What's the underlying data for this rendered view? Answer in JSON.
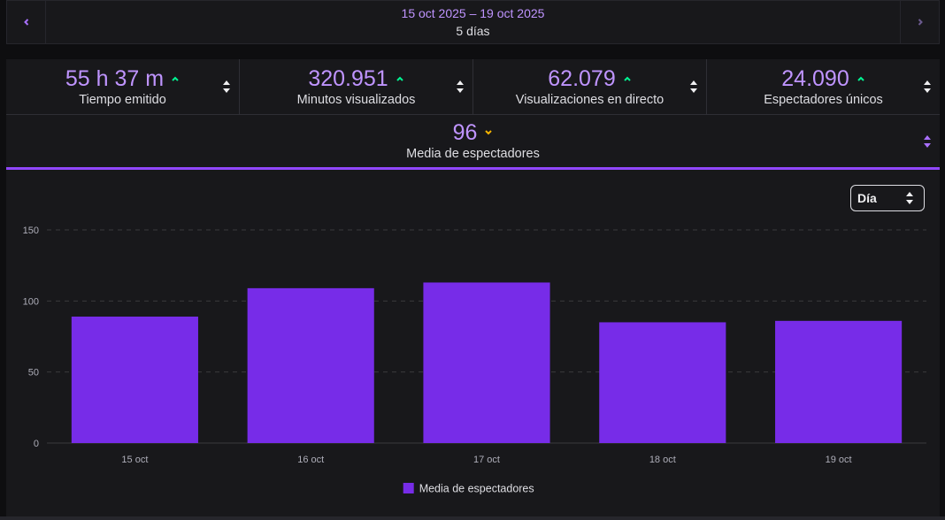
{
  "date_nav": {
    "range": "15 oct 2025 – 19 oct 2025",
    "days": "5 días",
    "prev_icon": "chevron-left-icon",
    "next_icon": "chevron-right-icon"
  },
  "stats": [
    {
      "value": "55 h 37 m",
      "label": "Tiempo emitido",
      "trend": "up"
    },
    {
      "value": "320.951",
      "label": "Minutos visualizados",
      "trend": "up"
    },
    {
      "value": "62.079",
      "label": "Visualizaciones en directo",
      "trend": "up"
    },
    {
      "value": "24.090",
      "label": "Espectadores únicos",
      "trend": "up"
    }
  ],
  "average": {
    "value": "96",
    "label": "Media de espectadores",
    "trend": "down"
  },
  "period_select": {
    "value": "Día"
  },
  "colors": {
    "accent": "#9147ff",
    "bar": "#772ce8",
    "trend_up": "#00f593",
    "trend_down": "#f5b400"
  },
  "chart_data": {
    "type": "bar",
    "categories": [
      "15 oct",
      "16 oct",
      "17 oct",
      "18 oct",
      "19 oct"
    ],
    "series": [
      {
        "name": "Media de espectadores",
        "values": [
          89,
          109,
          113,
          85,
          86
        ]
      }
    ],
    "ylim": [
      0,
      150
    ],
    "yticks": [
      0,
      50,
      100,
      150
    ],
    "legend": "bottom",
    "grid": true
  }
}
